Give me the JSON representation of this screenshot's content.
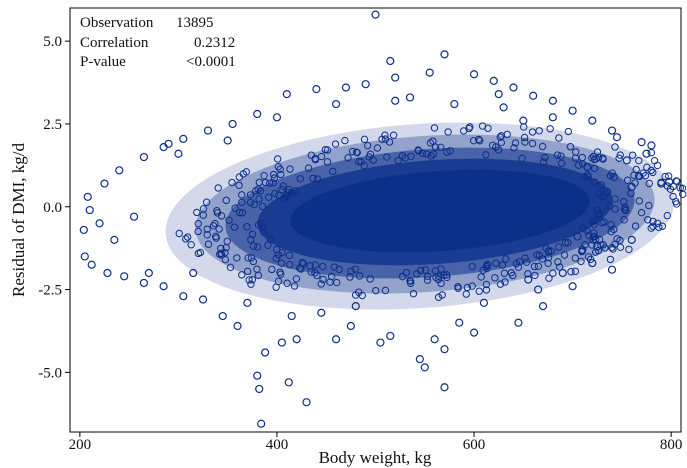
{
  "chart_data": {
    "type": "scatter",
    "title": "",
    "xlabel": "Body weight, kg",
    "ylabel": "Residual of DMI, kg/d",
    "xlim": [
      190,
      810
    ],
    "ylim": [
      -6.8,
      6.0
    ],
    "xticks": [
      200,
      400,
      600,
      800
    ],
    "xtick_labels": [
      "200",
      "400",
      "600",
      "800"
    ],
    "yticks": [
      5.0,
      2.5,
      0.0,
      -2.5,
      -5.0
    ],
    "ytick_labels": [
      "5.0",
      "2.5",
      "0.0",
      "-2.5",
      "-5.0"
    ],
    "grid": false,
    "legend": "none",
    "marker": "open-circle",
    "marker_color": "#0b2f8a",
    "background_color": "#ffffff",
    "stats": [
      {
        "label": "Observation",
        "value": "13895"
      },
      {
        "label": "Correlation",
        "value": "0.2312"
      },
      {
        "label": "P-value",
        "value": "<0.0001"
      }
    ],
    "series": [
      {
        "values": [
          [
            500,
            5.8
          ],
          [
            515,
            4.4
          ],
          [
            570,
            4.6
          ],
          [
            555,
            4.05
          ],
          [
            520,
            3.9
          ],
          [
            490,
            3.7
          ],
          [
            470,
            3.6
          ],
          [
            410,
            3.4
          ],
          [
            440,
            3.55
          ],
          [
            600,
            4.0
          ],
          [
            620,
            3.8
          ],
          [
            640,
            3.6
          ],
          [
            660,
            3.35
          ],
          [
            680,
            3.2
          ],
          [
            700,
            2.9
          ],
          [
            720,
            2.6
          ],
          [
            745,
            2.1
          ],
          [
            770,
            1.95
          ],
          [
            775,
            1.6
          ],
          [
            780,
            1.85
          ],
          [
            790,
            0.7
          ],
          [
            798,
            0.75
          ],
          [
            760,
            0.6
          ],
          [
            742,
            0.9
          ],
          [
            735,
            0.45
          ],
          [
            705,
            -0.9
          ],
          [
            710,
            -1.3
          ],
          [
            720,
            -1.7
          ],
          [
            690,
            -2.0
          ],
          [
            700,
            -2.4
          ],
          [
            665,
            -2.5
          ],
          [
            670,
            -3.0
          ],
          [
            645,
            -3.5
          ],
          [
            600,
            -3.8
          ],
          [
            585,
            -3.5
          ],
          [
            560,
            -4.0
          ],
          [
            570,
            -4.3
          ],
          [
            545,
            -4.6
          ],
          [
            550,
            -4.85
          ],
          [
            570,
            -5.45
          ],
          [
            515,
            -3.9
          ],
          [
            505,
            -4.1
          ],
          [
            475,
            -3.6
          ],
          [
            460,
            -4.0
          ],
          [
            445,
            -3.2
          ],
          [
            420,
            -4.0
          ],
          [
            405,
            -4.1
          ],
          [
            388,
            -4.4
          ],
          [
            380,
            -5.1
          ],
          [
            382,
            -5.5
          ],
          [
            384,
            -6.55
          ],
          [
            412,
            -5.3
          ],
          [
            430,
            -5.9
          ],
          [
            360,
            -3.6
          ],
          [
            345,
            -3.3
          ],
          [
            325,
            -2.8
          ],
          [
            305,
            -2.7
          ],
          [
            285,
            -2.4
          ],
          [
            265,
            -2.3
          ],
          [
            245,
            -2.1
          ],
          [
            228,
            -2.0
          ],
          [
            212,
            -1.75
          ],
          [
            205,
            -1.5
          ],
          [
            204,
            -0.7
          ],
          [
            210,
            -0.1
          ],
          [
            208,
            0.3
          ],
          [
            225,
            0.7
          ],
          [
            240,
            1.1
          ],
          [
            265,
            1.5
          ],
          [
            285,
            1.8
          ],
          [
            305,
            2.05
          ],
          [
            330,
            2.3
          ],
          [
            355,
            2.5
          ],
          [
            380,
            2.8
          ],
          [
            460,
            3.1
          ],
          [
            520,
            3.2
          ],
          [
            580,
            3.1
          ],
          [
            630,
            3.0
          ],
          [
            650,
            2.6
          ],
          [
            740,
            2.3
          ],
          [
            755,
            1.4
          ],
          [
            760,
            -1.0
          ],
          [
            740,
            -1.9
          ],
          [
            255,
            -0.3
          ],
          [
            235,
            -1.0
          ],
          [
            220,
            -0.5
          ],
          [
            300,
            1.6
          ],
          [
            315,
            -2.0
          ],
          [
            350,
            2.0
          ],
          [
            370,
            -2.9
          ],
          [
            400,
            2.7
          ],
          [
            415,
            -3.3
          ],
          [
            480,
            -3.0
          ],
          [
            535,
            3.3
          ],
          [
            610,
            -2.9
          ],
          [
            625,
            3.4
          ],
          [
            655,
            -2.2
          ],
          [
            680,
            2.7
          ],
          [
            715,
            1.2
          ],
          [
            725,
            -1.2
          ],
          [
            270,
            -2.0
          ],
          [
            290,
            1.9
          ]
        ]
      }
    ]
  }
}
